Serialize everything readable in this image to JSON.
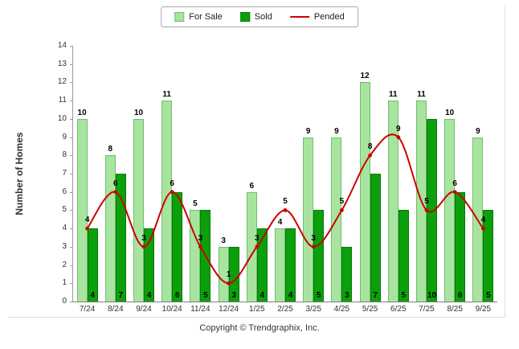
{
  "chart_data": {
    "type": "bar",
    "categories": [
      "7/24",
      "8/24",
      "9/24",
      "10/24",
      "11/24",
      "12/24",
      "1/25",
      "2/25",
      "3/25",
      "4/25",
      "5/25",
      "6/25",
      "7/25",
      "8/25",
      "9/25"
    ],
    "series": [
      {
        "name": "For Sale",
        "type": "bar",
        "color": "#A8E4A0",
        "border_color": "#6cc06c",
        "values": [
          10,
          8,
          10,
          11,
          5,
          3,
          6,
          4,
          9,
          9,
          12,
          11,
          11,
          10,
          9
        ]
      },
      {
        "name": "Sold",
        "type": "bar",
        "color": "#0BA00B",
        "border_color": "#067806",
        "values": [
          4,
          7,
          4,
          6,
          5,
          3,
          4,
          4,
          5,
          3,
          7,
          5,
          10,
          6,
          5
        ]
      },
      {
        "name": "Pended",
        "type": "line",
        "color": "#CC0000",
        "values": [
          4,
          6,
          3,
          6,
          3,
          1,
          3,
          5,
          3,
          5,
          8,
          9,
          5,
          6,
          4
        ]
      }
    ],
    "title": "",
    "xlabel": "",
    "ylabel": "Number of Homes",
    "ylim": [
      0,
      14
    ],
    "ytick_step": 1,
    "grid": false,
    "legend_position": "top"
  },
  "footer": {
    "text": "Copyright © Trendgraphix, Inc."
  }
}
